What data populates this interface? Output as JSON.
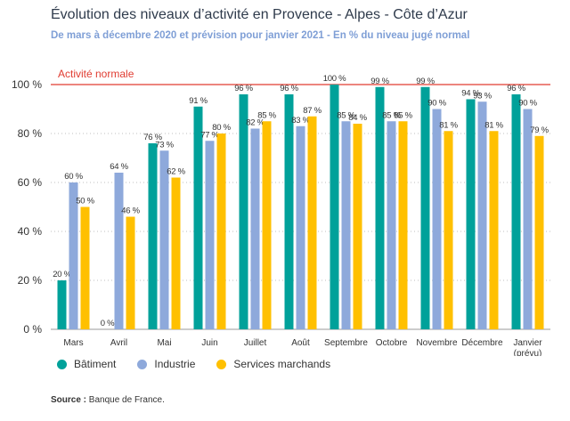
{
  "header": {
    "title": "Évolution des niveaux d’activité en Provence - Alpes - Côte d’Azur",
    "subtitle": "De mars à décembre 2020 et prévision pour janvier 2021 - En % du niveau jugé normal"
  },
  "chart_data": {
    "type": "bar",
    "categories": [
      "Mars",
      "Avril",
      "Mai",
      "Juin",
      "Juillet",
      "Août",
      "Septembre",
      "Octobre",
      "Novembre",
      "Décembre",
      "Janvier\n(prévu)"
    ],
    "series": [
      {
        "name": "Bâtiment",
        "color": "#00a19a",
        "values": [
          20,
          0,
          76,
          91,
          96,
          96,
          100,
          99,
          99,
          94,
          96
        ]
      },
      {
        "name": "Industrie",
        "color": "#8ea9db",
        "values": [
          60,
          64,
          73,
          77,
          82,
          83,
          85,
          85,
          90,
          93,
          90
        ]
      },
      {
        "name": "Services marchands",
        "color": "#ffc000",
        "values": [
          50,
          46,
          62,
          80,
          85,
          87,
          84,
          85,
          81,
          81,
          79
        ]
      }
    ],
    "ylim": [
      0,
      100
    ],
    "yticks": [
      0,
      20,
      40,
      60,
      80,
      100
    ],
    "ytick_suffix": " %",
    "value_suffix": " %",
    "reference_line": {
      "value": 100,
      "label": "Activité normale",
      "color": "#e03c31"
    },
    "grid": "horizontal-dotted",
    "legend_position": "bottom-left"
  },
  "footer": {
    "source_label": "Source :",
    "source_text": " Banque de France."
  }
}
